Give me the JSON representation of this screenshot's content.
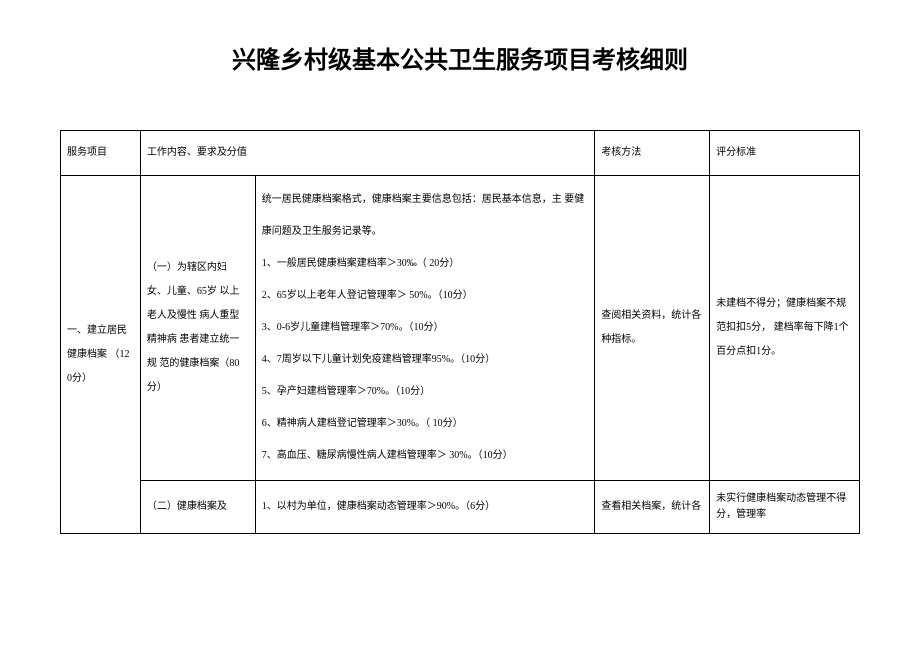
{
  "title": "兴隆乡村级基本公共卫生服务项目考核细则",
  "headers": {
    "col1": "服务项目",
    "col2_3": "工作内容、要求及分值",
    "col4": "考核方法",
    "col5": "评分标准"
  },
  "row1": {
    "project": "一、建立居民 健康档案 （12 0分）",
    "sub1": "（一）为辖区内妇 女、儿童、65岁 以上 老人及慢性 病人重型 精神病 患者建立统一 规 范的健康档案（80 分）",
    "content1": " 统一居民健康档案格式，健康档案主要信息包括：居民基本信息，主 要健康问题及卫生服务记录等。\n1、一般居民健康档案建档率＞30‰（ 20分）\n2、65岁以上老年人登记管理率＞ 50%。（10分）\n3、0-6岁儿童建档管理率＞70%。（10分）\n4、7周岁以下儿童计划免疫建档管理率95%。（10分）\n5、孕产妇建档管理率＞70%。（10分）\n6、精神病人建档登记管理率＞30%。（ 10分）\n7、高血压、糖尿病慢性病人建档管理率＞ 30%。（10分）",
    "method1": "查阅相关资料，统计各 种指标。",
    "standard1": "未建档不得分；健康档案不规范扣扣5分， 建档率每下降1个百分点扣1分。",
    "sub2": "（二）健康档案及",
    "content2": "1、以村为单位，健康档案动态管理率＞90%。（6分）",
    "method2": "查看相关档案，统计各",
    "standard2": "未实行健康档案动态管理不得分，管理率"
  },
  "styles": {
    "title_fontsize": 24,
    "body_fontsize": 10,
    "border_color": "#000000",
    "background_color": "#ffffff",
    "text_color": "#000000",
    "cell_line_height": 3.2
  }
}
